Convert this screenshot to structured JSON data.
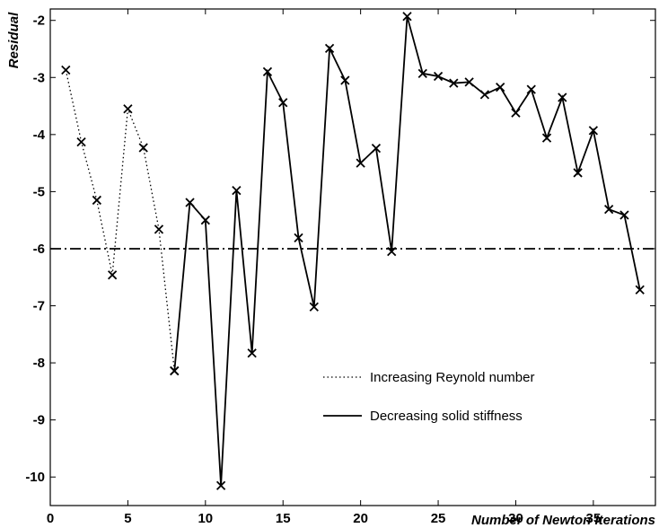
{
  "chart_data": {
    "type": "line",
    "title": "",
    "xlabel": "Number of Newton Iterations",
    "ylabel": "Residual",
    "xlim": [
      0,
      39
    ],
    "ylim": [
      -10.5,
      -1.8
    ],
    "xticks": [
      0,
      5,
      10,
      15,
      20,
      25,
      30,
      35
    ],
    "yticks": [
      -2,
      -3,
      -4,
      -5,
      -6,
      -7,
      -8,
      -9,
      -10
    ],
    "grid": false,
    "legend_position": "lower-right",
    "reference_line": {
      "y": -6,
      "style": "dash-dot"
    },
    "series": [
      {
        "name": "Increasing Reynold number",
        "style": "dotted",
        "marker": "x",
        "x": [
          1,
          2,
          3,
          4,
          5,
          6,
          7,
          8
        ],
        "y": [
          -2.87,
          -4.13,
          -5.15,
          -6.46,
          -3.55,
          -4.23,
          -5.66,
          -8.14
        ]
      },
      {
        "name": "Decreasing solid stiffness",
        "style": "solid",
        "marker": "x",
        "x": [
          8,
          9,
          10,
          11,
          12,
          13,
          14,
          15,
          16,
          17,
          18,
          19,
          20,
          21,
          22,
          23,
          24,
          25,
          26,
          27,
          28,
          29,
          30,
          31,
          32,
          33,
          34,
          35,
          36,
          37,
          38
        ],
        "y": [
          -8.14,
          -5.19,
          -5.5,
          -10.15,
          -4.98,
          -7.83,
          -2.9,
          -3.44,
          -5.81,
          -7.02,
          -2.49,
          -3.05,
          -4.5,
          -4.24,
          -6.05,
          -1.93,
          -2.93,
          -2.98,
          -3.1,
          -3.08,
          -3.3,
          -3.17,
          -3.62,
          -3.21,
          -4.06,
          -3.35,
          -4.67,
          -3.93,
          -5.31,
          -5.41,
          -6.72
        ]
      }
    ]
  }
}
